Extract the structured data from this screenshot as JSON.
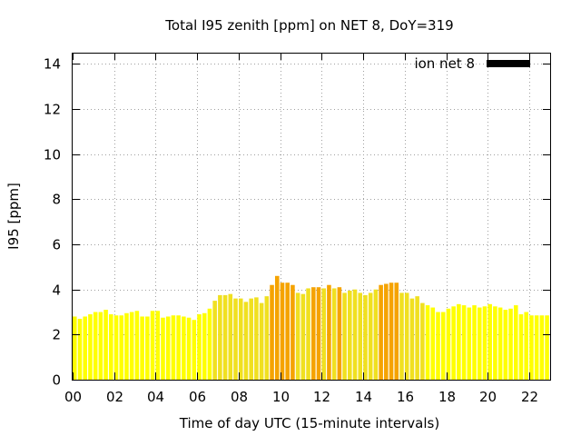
{
  "chart_data": {
    "type": "bar",
    "title": "Total I95 zenith [ppm] on NET 8, DoY=319",
    "xlabel": "Time of day UTC (15-minute intervals)",
    "ylabel": "I95 [ppm]",
    "xlim": [
      0,
      23
    ],
    "ylim": [
      0,
      14.5
    ],
    "x_ticks": [
      0,
      2,
      4,
      6,
      8,
      10,
      12,
      14,
      16,
      18,
      20,
      22
    ],
    "x_tick_labels": [
      "00",
      "02",
      "04",
      "06",
      "08",
      "10",
      "12",
      "14",
      "16",
      "18",
      "20",
      "22"
    ],
    "y_ticks": [
      0,
      2,
      4,
      6,
      8,
      10,
      12,
      14
    ],
    "y_tick_labels": [
      "0",
      "2",
      "4",
      "6",
      "8",
      "10",
      "12",
      "14"
    ],
    "grid": true,
    "legend": {
      "label": "ion net 8",
      "color": "#000000",
      "placement": "top-right"
    },
    "color_scale": {
      "low": "#ffff00",
      "mid": "#f0e020",
      "high": "#f5a300",
      "thresholds": [
        3.4,
        4.1
      ]
    },
    "bar_width_hours": 0.2,
    "series": [
      {
        "x": [
          0.0,
          0.25,
          0.5,
          0.75,
          1.0,
          1.25,
          1.5,
          1.75,
          2.0,
          2.25,
          2.5,
          2.75,
          3.0,
          3.25,
          3.5,
          3.75,
          4.0,
          4.25,
          4.5,
          4.75,
          5.0,
          5.25,
          5.5,
          5.75,
          6.0,
          6.25,
          6.5,
          6.75,
          7.0,
          7.25,
          7.5,
          7.75,
          8.0,
          8.25,
          8.5,
          8.75,
          9.0,
          9.25,
          9.5,
          9.75,
          10.0,
          10.25,
          10.5,
          10.75,
          11.0,
          11.25,
          11.5,
          11.75,
          12.0,
          12.25,
          12.5,
          12.75,
          13.0,
          13.25,
          13.5,
          13.75,
          14.0,
          14.25,
          14.5,
          14.75,
          15.0,
          15.25,
          15.5,
          15.75,
          16.0,
          16.25,
          16.5,
          16.75,
          17.0,
          17.25,
          17.5,
          17.75,
          18.0,
          18.25,
          18.5,
          18.75,
          19.0,
          19.25,
          19.5,
          19.75,
          20.0,
          20.25,
          20.5,
          20.75,
          21.0,
          21.25,
          21.5,
          21.75,
          22.0,
          22.25,
          22.5,
          22.75
        ],
        "values": [
          2.8,
          2.7,
          2.8,
          2.9,
          3.0,
          3.0,
          3.1,
          2.9,
          2.85,
          2.85,
          2.95,
          3.0,
          3.05,
          2.8,
          2.8,
          3.05,
          3.05,
          2.75,
          2.8,
          2.85,
          2.85,
          2.8,
          2.75,
          2.65,
          2.9,
          2.95,
          3.15,
          3.5,
          3.75,
          3.75,
          3.8,
          3.6,
          3.6,
          3.45,
          3.6,
          3.65,
          3.4,
          3.7,
          4.2,
          4.6,
          4.3,
          4.3,
          4.2,
          3.85,
          3.8,
          4.05,
          4.1,
          4.1,
          4.05,
          4.2,
          4.05,
          4.1,
          3.85,
          3.95,
          4.0,
          3.85,
          3.75,
          3.85,
          4.0,
          4.2,
          4.25,
          4.3,
          4.3,
          3.85,
          3.85,
          3.6,
          3.7,
          3.4,
          3.3,
          3.2,
          3.0,
          3.0,
          3.15,
          3.25,
          3.35,
          3.3,
          3.2,
          3.3,
          3.2,
          3.25,
          3.35,
          3.25,
          3.2,
          3.1,
          3.15,
          3.3,
          2.9,
          3.0,
          2.85,
          2.85,
          2.85,
          2.85
        ]
      }
    ]
  }
}
